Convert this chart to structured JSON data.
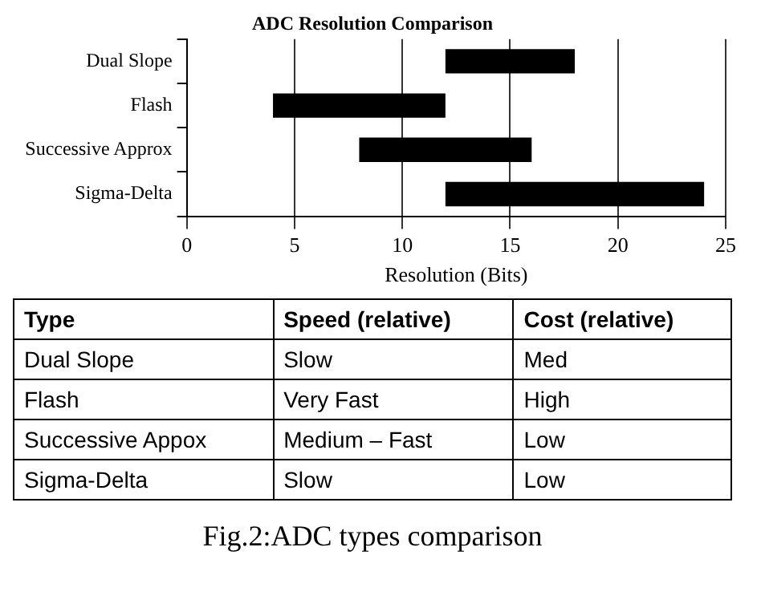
{
  "chart_data": [
    {
      "type": "bar",
      "title": "ADC Resolution Comparison",
      "xlabel": "Resolution (Bits)",
      "orientation": "horizontal",
      "categories": [
        "Dual Slope",
        "Flash",
        "Successive Approx",
        "Sigma-Delta"
      ],
      "base": [
        12,
        4,
        8,
        12
      ],
      "values": [
        6,
        8,
        8,
        12
      ],
      "color": "#000000",
      "xlim": [
        0,
        25
      ],
      "xticks": [
        0,
        5,
        10,
        15,
        20,
        25
      ],
      "grid": "x"
    },
    {
      "type": "other",
      "categories": [
        "Type",
        "Speed (relative)",
        "Cost (relative)"
      ],
      "y_categories": [
        "Dual Slope",
        "Flash",
        "Successive Appox",
        "Sigma-Delta"
      ],
      "cell_labels": [
        [
          "Slow",
          "Med"
        ],
        [
          "Very Fast",
          "High"
        ],
        [
          "Medium – Fast",
          "Low"
        ],
        [
          "Slow",
          "Low"
        ]
      ],
      "annotations": [
        "Fig.2:ADC types comparison"
      ]
    }
  ]
}
